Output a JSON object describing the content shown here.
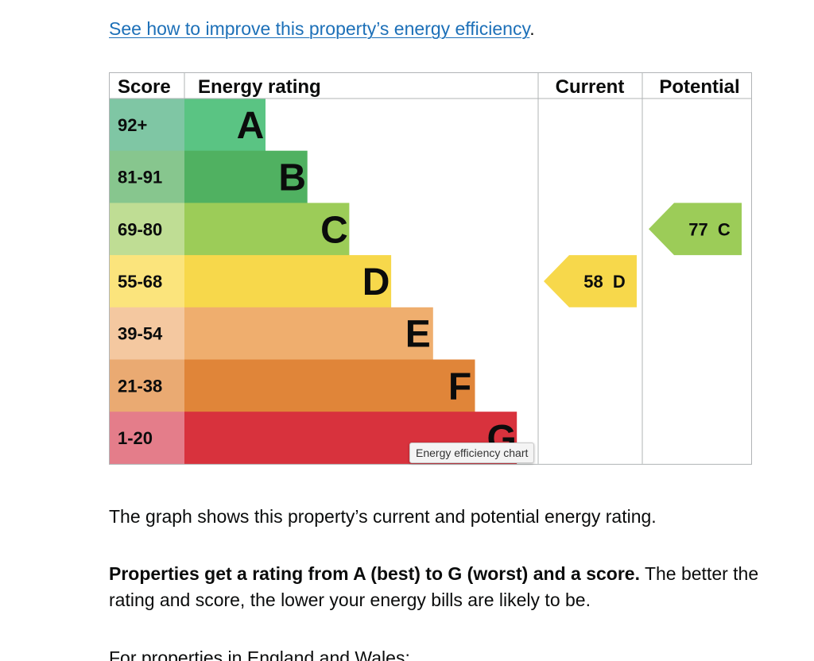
{
  "top_link": {
    "text": "See how to improve this property’s energy efficiency",
    "suffix": "."
  },
  "chart_data": {
    "type": "bar",
    "columns": {
      "score": "Score",
      "rating": "Energy rating",
      "current": "Current",
      "potential": "Potential"
    },
    "bands": [
      {
        "letter": "A",
        "score": "92+",
        "color": "#5ac483",
        "score_bg": "#7fc6a4"
      },
      {
        "letter": "B",
        "score": "81-91",
        "color": "#50b161",
        "score_bg": "#87c68e"
      },
      {
        "letter": "C",
        "score": "69-80",
        "color": "#9ccc58",
        "score_bg": "#bfdd94"
      },
      {
        "letter": "D",
        "score": "55-68",
        "color": "#f7d84b",
        "score_bg": "#fbe47c"
      },
      {
        "letter": "E",
        "score": "39-54",
        "color": "#efae6e",
        "score_bg": "#f4c8a0"
      },
      {
        "letter": "F",
        "score": "21-38",
        "color": "#e08539",
        "score_bg": "#eaaa72"
      },
      {
        "letter": "G",
        "score": "1-20",
        "color": "#d8323d",
        "score_bg": "#e47d8a"
      }
    ],
    "current": {
      "value": 58,
      "letter": "D",
      "label": "58  D",
      "color": "#f7d84b"
    },
    "potential": {
      "value": 77,
      "letter": "C",
      "label": "77  C",
      "color": "#9ccc58"
    }
  },
  "tooltip": {
    "text": "Energy efficiency chart"
  },
  "body": {
    "p1": "The graph shows this property’s current and potential energy rating.",
    "p2_bold": "Properties get a rating from A (best) to G (worst) and a score.",
    "p2_rest": " The better the rating and score, the lower your energy bills are likely to be.",
    "p3": "For properties in England and Wales:"
  }
}
